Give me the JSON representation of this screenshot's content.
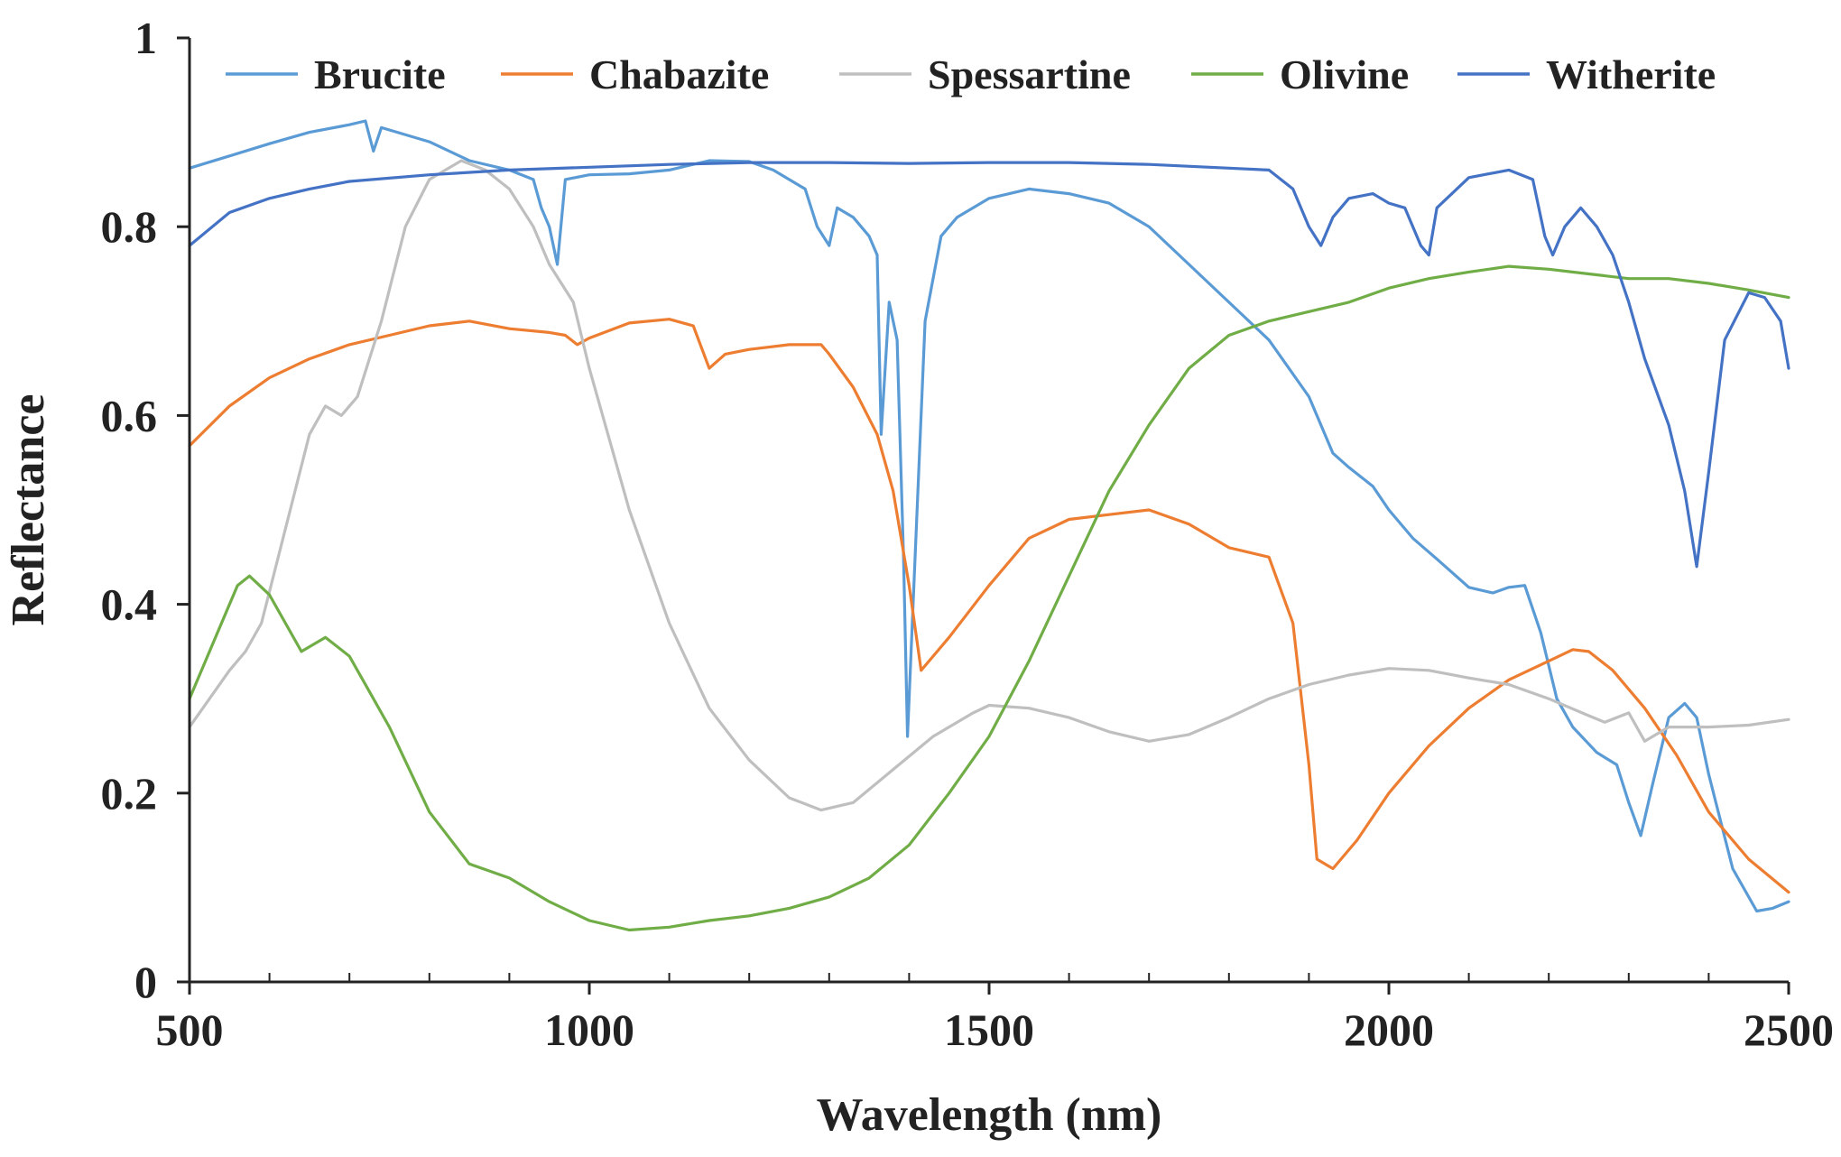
{
  "chart_data": {
    "type": "line",
    "title": "",
    "xlabel": "Wavelength (nm)",
    "ylabel": "Reflectance",
    "xlim": [
      500,
      2500
    ],
    "ylim": [
      0,
      1
    ],
    "x_ticks": [
      500,
      1000,
      1500,
      2000,
      2500
    ],
    "x_tick_labels": [
      "500",
      "1000",
      "1500",
      "2000",
      "2500"
    ],
    "y_ticks": [
      0,
      0.2,
      0.4,
      0.6,
      0.8,
      1
    ],
    "y_tick_labels": [
      "0",
      "0.2",
      "0.4",
      "0.6",
      "0.8",
      "1"
    ],
    "legend_position": "top",
    "grid": false,
    "series": [
      {
        "name": "Brucite",
        "color": "#5b9bd5",
        "points": [
          [
            500,
            0.862
          ],
          [
            550,
            0.875
          ],
          [
            600,
            0.888
          ],
          [
            650,
            0.9
          ],
          [
            700,
            0.908
          ],
          [
            720,
            0.912
          ],
          [
            730,
            0.88
          ],
          [
            740,
            0.905
          ],
          [
            800,
            0.89
          ],
          [
            850,
            0.87
          ],
          [
            900,
            0.86
          ],
          [
            930,
            0.85
          ],
          [
            940,
            0.82
          ],
          [
            950,
            0.8
          ],
          [
            960,
            0.76
          ],
          [
            970,
            0.85
          ],
          [
            1000,
            0.855
          ],
          [
            1050,
            0.856
          ],
          [
            1100,
            0.86
          ],
          [
            1150,
            0.87
          ],
          [
            1200,
            0.869
          ],
          [
            1230,
            0.86
          ],
          [
            1250,
            0.85
          ],
          [
            1270,
            0.84
          ],
          [
            1285,
            0.8
          ],
          [
            1300,
            0.78
          ],
          [
            1310,
            0.82
          ],
          [
            1330,
            0.81
          ],
          [
            1350,
            0.79
          ],
          [
            1360,
            0.77
          ],
          [
            1365,
            0.58
          ],
          [
            1375,
            0.72
          ],
          [
            1385,
            0.68
          ],
          [
            1393,
            0.45
          ],
          [
            1398,
            0.26
          ],
          [
            1405,
            0.4
          ],
          [
            1420,
            0.7
          ],
          [
            1440,
            0.79
          ],
          [
            1460,
            0.81
          ],
          [
            1500,
            0.83
          ],
          [
            1550,
            0.84
          ],
          [
            1600,
            0.835
          ],
          [
            1650,
            0.825
          ],
          [
            1700,
            0.8
          ],
          [
            1750,
            0.76
          ],
          [
            1800,
            0.72
          ],
          [
            1850,
            0.68
          ],
          [
            1900,
            0.62
          ],
          [
            1930,
            0.56
          ],
          [
            1950,
            0.545
          ],
          [
            1980,
            0.525
          ],
          [
            2000,
            0.5
          ],
          [
            2030,
            0.47
          ],
          [
            2060,
            0.448
          ],
          [
            2100,
            0.418
          ],
          [
            2130,
            0.412
          ],
          [
            2150,
            0.418
          ],
          [
            2170,
            0.42
          ],
          [
            2190,
            0.37
          ],
          [
            2210,
            0.3
          ],
          [
            2230,
            0.27
          ],
          [
            2260,
            0.243
          ],
          [
            2285,
            0.23
          ],
          [
            2300,
            0.19
          ],
          [
            2315,
            0.155
          ],
          [
            2330,
            0.21
          ],
          [
            2350,
            0.28
          ],
          [
            2370,
            0.295
          ],
          [
            2385,
            0.28
          ],
          [
            2400,
            0.22
          ],
          [
            2430,
            0.12
          ],
          [
            2460,
            0.075
          ],
          [
            2480,
            0.078
          ],
          [
            2500,
            0.085
          ]
        ]
      },
      {
        "name": "Chabazite",
        "color": "#ed7d31",
        "points": [
          [
            500,
            0.568
          ],
          [
            550,
            0.61
          ],
          [
            600,
            0.64
          ],
          [
            650,
            0.66
          ],
          [
            700,
            0.675
          ],
          [
            750,
            0.685
          ],
          [
            800,
            0.695
          ],
          [
            850,
            0.7
          ],
          [
            900,
            0.692
          ],
          [
            950,
            0.688
          ],
          [
            970,
            0.685
          ],
          [
            985,
            0.675
          ],
          [
            1000,
            0.682
          ],
          [
            1050,
            0.698
          ],
          [
            1100,
            0.702
          ],
          [
            1130,
            0.695
          ],
          [
            1150,
            0.65
          ],
          [
            1170,
            0.665
          ],
          [
            1200,
            0.67
          ],
          [
            1250,
            0.675
          ],
          [
            1290,
            0.675
          ],
          [
            1300,
            0.665
          ],
          [
            1330,
            0.63
          ],
          [
            1360,
            0.58
          ],
          [
            1380,
            0.52
          ],
          [
            1400,
            0.42
          ],
          [
            1415,
            0.33
          ],
          [
            1430,
            0.345
          ],
          [
            1450,
            0.365
          ],
          [
            1500,
            0.42
          ],
          [
            1550,
            0.47
          ],
          [
            1600,
            0.49
          ],
          [
            1650,
            0.495
          ],
          [
            1700,
            0.5
          ],
          [
            1750,
            0.485
          ],
          [
            1800,
            0.46
          ],
          [
            1850,
            0.45
          ],
          [
            1880,
            0.38
          ],
          [
            1900,
            0.23
          ],
          [
            1910,
            0.13
          ],
          [
            1930,
            0.12
          ],
          [
            1960,
            0.15
          ],
          [
            2000,
            0.2
          ],
          [
            2050,
            0.25
          ],
          [
            2100,
            0.29
          ],
          [
            2150,
            0.32
          ],
          [
            2200,
            0.34
          ],
          [
            2230,
            0.352
          ],
          [
            2250,
            0.35
          ],
          [
            2280,
            0.33
          ],
          [
            2320,
            0.29
          ],
          [
            2360,
            0.24
          ],
          [
            2400,
            0.18
          ],
          [
            2450,
            0.13
          ],
          [
            2500,
            0.095
          ]
        ]
      },
      {
        "name": "Spessartine",
        "color": "#bfbfbf",
        "points": [
          [
            500,
            0.27
          ],
          [
            550,
            0.33
          ],
          [
            570,
            0.35
          ],
          [
            590,
            0.38
          ],
          [
            620,
            0.48
          ],
          [
            650,
            0.58
          ],
          [
            670,
            0.61
          ],
          [
            690,
            0.6
          ],
          [
            710,
            0.62
          ],
          [
            740,
            0.7
          ],
          [
            770,
            0.8
          ],
          [
            800,
            0.85
          ],
          [
            840,
            0.87
          ],
          [
            870,
            0.86
          ],
          [
            900,
            0.84
          ],
          [
            930,
            0.8
          ],
          [
            950,
            0.76
          ],
          [
            980,
            0.72
          ],
          [
            1000,
            0.65
          ],
          [
            1050,
            0.5
          ],
          [
            1100,
            0.38
          ],
          [
            1150,
            0.29
          ],
          [
            1200,
            0.235
          ],
          [
            1250,
            0.195
          ],
          [
            1290,
            0.182
          ],
          [
            1330,
            0.19
          ],
          [
            1380,
            0.225
          ],
          [
            1430,
            0.26
          ],
          [
            1480,
            0.285
          ],
          [
            1500,
            0.293
          ],
          [
            1550,
            0.29
          ],
          [
            1600,
            0.28
          ],
          [
            1650,
            0.265
          ],
          [
            1700,
            0.255
          ],
          [
            1750,
            0.262
          ],
          [
            1800,
            0.28
          ],
          [
            1850,
            0.3
          ],
          [
            1900,
            0.315
          ],
          [
            1950,
            0.325
          ],
          [
            2000,
            0.332
          ],
          [
            2050,
            0.33
          ],
          [
            2100,
            0.322
          ],
          [
            2150,
            0.315
          ],
          [
            2200,
            0.3
          ],
          [
            2250,
            0.282
          ],
          [
            2270,
            0.275
          ],
          [
            2300,
            0.285
          ],
          [
            2320,
            0.255
          ],
          [
            2350,
            0.27
          ],
          [
            2400,
            0.27
          ],
          [
            2450,
            0.272
          ],
          [
            2500,
            0.278
          ]
        ]
      },
      {
        "name": "Olivine",
        "color": "#70ad47",
        "points": [
          [
            500,
            0.3
          ],
          [
            530,
            0.36
          ],
          [
            560,
            0.42
          ],
          [
            575,
            0.43
          ],
          [
            600,
            0.41
          ],
          [
            620,
            0.38
          ],
          [
            640,
            0.35
          ],
          [
            670,
            0.365
          ],
          [
            700,
            0.345
          ],
          [
            750,
            0.27
          ],
          [
            800,
            0.18
          ],
          [
            850,
            0.125
          ],
          [
            900,
            0.11
          ],
          [
            950,
            0.085
          ],
          [
            1000,
            0.065
          ],
          [
            1050,
            0.055
          ],
          [
            1100,
            0.058
          ],
          [
            1150,
            0.065
          ],
          [
            1200,
            0.07
          ],
          [
            1250,
            0.078
          ],
          [
            1300,
            0.09
          ],
          [
            1350,
            0.11
          ],
          [
            1400,
            0.145
          ],
          [
            1450,
            0.2
          ],
          [
            1500,
            0.26
          ],
          [
            1550,
            0.34
          ],
          [
            1600,
            0.43
          ],
          [
            1650,
            0.52
          ],
          [
            1700,
            0.59
          ],
          [
            1750,
            0.65
          ],
          [
            1800,
            0.685
          ],
          [
            1850,
            0.7
          ],
          [
            1900,
            0.71
          ],
          [
            1950,
            0.72
          ],
          [
            2000,
            0.735
          ],
          [
            2050,
            0.745
          ],
          [
            2100,
            0.752
          ],
          [
            2150,
            0.758
          ],
          [
            2200,
            0.755
          ],
          [
            2250,
            0.75
          ],
          [
            2300,
            0.745
          ],
          [
            2350,
            0.745
          ],
          [
            2400,
            0.74
          ],
          [
            2450,
            0.733
          ],
          [
            2500,
            0.725
          ]
        ]
      },
      {
        "name": "Witherite",
        "color": "#4472c4",
        "points": [
          [
            500,
            0.78
          ],
          [
            550,
            0.815
          ],
          [
            600,
            0.83
          ],
          [
            650,
            0.84
          ],
          [
            700,
            0.848
          ],
          [
            800,
            0.855
          ],
          [
            900,
            0.86
          ],
          [
            1000,
            0.863
          ],
          [
            1100,
            0.866
          ],
          [
            1200,
            0.868
          ],
          [
            1300,
            0.868
          ],
          [
            1400,
            0.867
          ],
          [
            1500,
            0.868
          ],
          [
            1600,
            0.868
          ],
          [
            1700,
            0.866
          ],
          [
            1800,
            0.862
          ],
          [
            1850,
            0.86
          ],
          [
            1880,
            0.84
          ],
          [
            1900,
            0.8
          ],
          [
            1915,
            0.78
          ],
          [
            1930,
            0.81
          ],
          [
            1950,
            0.83
          ],
          [
            1980,
            0.835
          ],
          [
            2000,
            0.825
          ],
          [
            2020,
            0.82
          ],
          [
            2040,
            0.78
          ],
          [
            2050,
            0.77
          ],
          [
            2060,
            0.82
          ],
          [
            2100,
            0.852
          ],
          [
            2150,
            0.86
          ],
          [
            2180,
            0.85
          ],
          [
            2195,
            0.79
          ],
          [
            2205,
            0.77
          ],
          [
            2220,
            0.8
          ],
          [
            2240,
            0.82
          ],
          [
            2260,
            0.8
          ],
          [
            2280,
            0.77
          ],
          [
            2300,
            0.72
          ],
          [
            2320,
            0.66
          ],
          [
            2350,
            0.59
          ],
          [
            2370,
            0.52
          ],
          [
            2385,
            0.44
          ],
          [
            2400,
            0.54
          ],
          [
            2420,
            0.68
          ],
          [
            2450,
            0.73
          ],
          [
            2470,
            0.725
          ],
          [
            2490,
            0.7
          ],
          [
            2500,
            0.65
          ]
        ]
      }
    ]
  }
}
